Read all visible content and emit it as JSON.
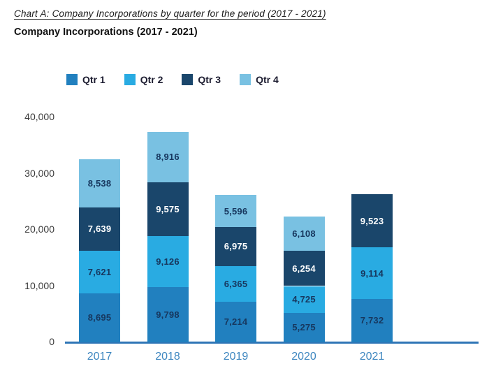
{
  "page": {
    "doc_title": "Chart A: Company Incorporations by quarter for the period (2017 - 2021)",
    "chart_heading": "Company Incorporations (2017 - 2021)"
  },
  "chart_data": {
    "type": "bar",
    "stacked": true,
    "title": "Company Incorporations (2017 - 2021)",
    "categories": [
      "2017",
      "2018",
      "2019",
      "2020",
      "2021"
    ],
    "series": [
      {
        "name": "Qtr 1",
        "color": "#2180BF",
        "label_color": "#17375E",
        "values": [
          8695,
          9798,
          7214,
          5275,
          7732
        ]
      },
      {
        "name": "Qtr 2",
        "color": "#29ABE2",
        "label_color": "#17375E",
        "values": [
          7621,
          9126,
          6365,
          4725,
          9114
        ]
      },
      {
        "name": "Qtr 3",
        "color": "#1A466B",
        "label_color": "#FFFFFF",
        "values": [
          7639,
          9575,
          6975,
          6254,
          9523
        ]
      },
      {
        "name": "Qtr 4",
        "color": "#79C1E2",
        "label_color": "#17375E",
        "values": [
          8538,
          8916,
          5596,
          6108,
          null
        ]
      }
    ],
    "y_ticks": [
      "40,000",
      "30,000",
      "20,000",
      "10,000",
      "0"
    ],
    "ylim": [
      0,
      40000
    ],
    "grid": false,
    "legend_position": "top",
    "data_labels": true,
    "axis_color": "#2E75B6",
    "x_tick_color": "#3E87C0",
    "y_tick_color": "#3A3A3A"
  }
}
